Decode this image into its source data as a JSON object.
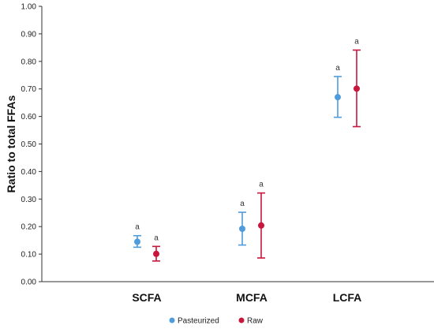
{
  "chart_data": {
    "type": "scatter",
    "subtype": "mean-with-error-bars",
    "ylabel": "Ratio to total FFAs",
    "ylim": [
      0,
      1
    ],
    "yticks": [
      "0.00",
      "0.10",
      "0.20",
      "0.30",
      "0.40",
      "0.50",
      "0.60",
      "0.70",
      "0.80",
      "0.90",
      "1.00"
    ],
    "categories": [
      "SCFA",
      "MCFA",
      "LCFA"
    ],
    "grid": false,
    "legend_position": "bottom-center",
    "series": [
      {
        "name": "Pasteurized",
        "color": "#4e9cdc",
        "values": [
          0.145,
          0.192,
          0.67
        ],
        "lower": [
          0.125,
          0.133,
          0.597
        ],
        "upper": [
          0.167,
          0.252,
          0.745
        ],
        "labels": [
          "a",
          "a",
          "a"
        ]
      },
      {
        "name": "Raw",
        "color": "#c8163d",
        "values": [
          0.101,
          0.204,
          0.701
        ],
        "lower": [
          0.075,
          0.086,
          0.563
        ],
        "upper": [
          0.128,
          0.322,
          0.841
        ],
        "labels": [
          "a",
          "a",
          "a"
        ]
      }
    ]
  }
}
